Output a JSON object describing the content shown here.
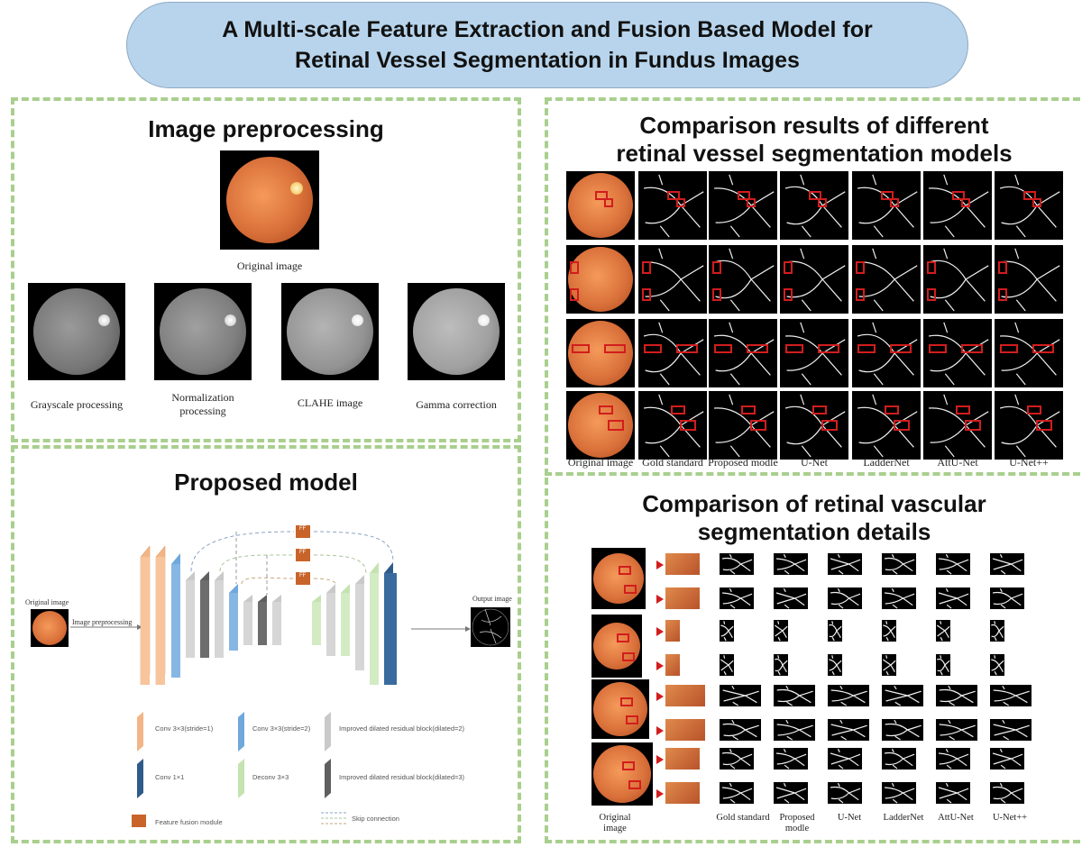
{
  "title": {
    "line1": "A Multi-scale Feature Extraction and Fusion Based Model for",
    "line2": "Retinal Vessel Segmentation in Fundus Images"
  },
  "preprocessing": {
    "heading": "Image preprocessing",
    "original_caption": "Original image",
    "steps": [
      {
        "label": "Grayscale processing"
      },
      {
        "label": "Normalization processing"
      },
      {
        "label": "CLAHE image"
      },
      {
        "label": "Gamma correction"
      }
    ]
  },
  "model": {
    "heading": "Proposed model",
    "input_label": "Original image",
    "arrow_label": "Image preprocessing",
    "output_label": "Output image",
    "ff_labels": [
      "FF",
      "FF",
      "FF"
    ],
    "legend": [
      {
        "label": "Conv 3×3(stride=1)",
        "color": "#f3b585"
      },
      {
        "label": "Conv 3×3(stride=2)",
        "color": "#6fa8dc"
      },
      {
        "label": "Improved dilated residual block(dilated=2)",
        "color": "#c9c9c9"
      },
      {
        "label": "Conv 1×1",
        "color": "#2f5b8a"
      },
      {
        "label": "Deconv 3×3",
        "color": "#c5e3b0"
      },
      {
        "label": "Improved dilated residual block(dilated=3)",
        "color": "#5f5f5f"
      },
      {
        "label": "Feature fusion module",
        "color": "#c8642a"
      },
      {
        "label": "Skip connection",
        "color": "#8aa3c2"
      }
    ]
  },
  "comparison": {
    "heading_line1": "Comparison results of different",
    "heading_line2": "retinal vessel segmentation models",
    "column_labels": [
      "Original image",
      "Gold standard",
      "Proposed modle",
      "U-Net",
      "LadderNet",
      "AttU-Net",
      "U-Net++"
    ]
  },
  "details": {
    "heading_line1": "Comparison of retinal vascular",
    "heading_line2": "segmentation details",
    "column_labels": [
      "Original image",
      "Gold standard",
      "Proposed modle",
      "U-Net",
      "LadderNet",
      "AttU-Net",
      "U-Net++"
    ]
  },
  "colors": {
    "pill_fill": "#b7d4ec",
    "panel_border": "#a9cf8e",
    "highlight": "#d21d1d",
    "fundus": "#d9703a"
  }
}
